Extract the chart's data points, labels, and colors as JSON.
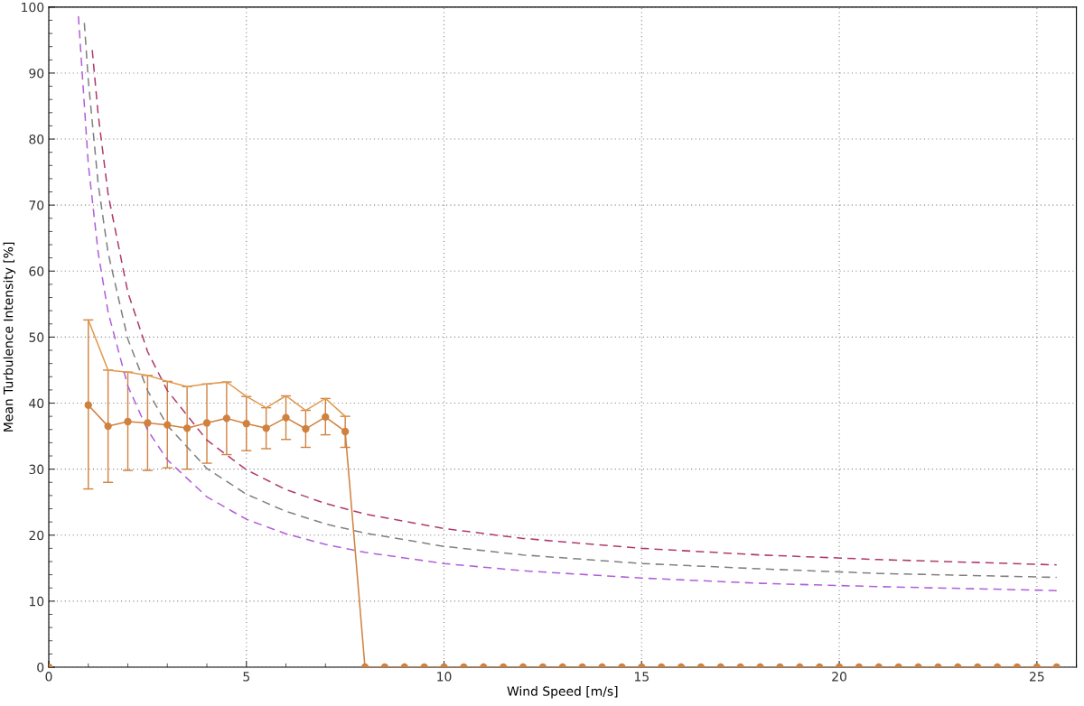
{
  "chart_data": {
    "type": "line",
    "xlabel": "Wind Speed [m/s]",
    "ylabel": "Mean Turbulence Intensity [%]",
    "xlim": [
      0,
      26
    ],
    "ylim": [
      0,
      100
    ],
    "xticks": [
      0,
      5,
      10,
      15,
      20,
      25
    ],
    "yticks": [
      0,
      10,
      20,
      30,
      40,
      50,
      60,
      70,
      80,
      90,
      100
    ],
    "grid": true,
    "legend": false,
    "series": [
      {
        "color": "#b03a6e",
        "line_style": "dashed",
        "marker": "none",
        "x": [
          1.1,
          1.25,
          1.5,
          2,
          2.5,
          3,
          4,
          5,
          6,
          7,
          8,
          10,
          12,
          15,
          18,
          21,
          25.5
        ],
        "values": [
          93.5,
          83.7,
          71.7,
          56.8,
          47.8,
          41.9,
          34.4,
          29.9,
          26.9,
          24.8,
          23.2,
          21.0,
          19.5,
          18.0,
          17.0,
          16.3,
          15.5
        ]
      },
      {
        "color": "#808080",
        "line_style": "dashed",
        "marker": "none",
        "x": [
          0.9,
          1.0,
          1.25,
          1.5,
          2,
          2.5,
          3,
          4,
          5,
          6,
          7,
          8,
          10,
          12,
          15,
          18,
          21,
          25.5
        ],
        "values": [
          97.6,
          88.9,
          73.2,
          62.8,
          49.7,
          41.9,
          36.6,
          30.1,
          26.2,
          23.6,
          21.7,
          20.3,
          18.3,
          17.0,
          15.7,
          14.9,
          14.2,
          13.6
        ]
      },
      {
        "color": "#b060d8",
        "line_style": "dashed",
        "marker": "none",
        "x": [
          0.75,
          1.0,
          1.25,
          1.5,
          2,
          2.5,
          3,
          4,
          5,
          6,
          7,
          8,
          10,
          12,
          15,
          18,
          21,
          25.5
        ],
        "values": [
          98.6,
          76.2,
          62.8,
          53.8,
          42.6,
          35.9,
          31.4,
          25.8,
          22.4,
          20.2,
          18.6,
          17.4,
          15.7,
          14.6,
          13.5,
          12.7,
          12.2,
          11.6
        ]
      },
      {
        "color": "#e09a50",
        "line_style": "solid",
        "marker": "none",
        "x": [
          1,
          1.5,
          2,
          2.5,
          3,
          3.5,
          4,
          4.5,
          5,
          5.5,
          6,
          6.5,
          7,
          7.5
        ],
        "values": [
          52.6,
          45.0,
          44.7,
          44.2,
          43.3,
          42.5,
          42.9,
          43.2,
          41.0,
          39.3,
          41.1,
          38.9,
          40.7,
          38.0
        ]
      },
      {
        "color": "#d0813e",
        "line_style": "solid",
        "marker": "circle",
        "x": [
          0,
          0.5,
          1,
          1.5,
          2,
          2.5,
          3,
          3.5,
          4,
          4.5,
          5,
          5.5,
          6,
          6.5,
          7,
          7.5,
          8,
          8.5,
          9,
          9.5,
          10,
          10.5,
          11,
          11.5,
          12,
          12.5,
          13,
          13.5,
          14,
          14.5,
          15,
          15.5,
          16,
          16.5,
          17,
          17.5,
          18,
          18.5,
          19,
          19.5,
          20,
          20.5,
          21,
          21.5,
          22,
          22.5,
          23,
          23.5,
          24,
          24.5,
          25,
          25.5
        ],
        "values": [
          0,
          null,
          39.7,
          36.5,
          37.2,
          37.0,
          36.7,
          36.2,
          37.0,
          37.7,
          36.9,
          36.2,
          37.8,
          36.1,
          37.9,
          35.7,
          0,
          0,
          0,
          0,
          0,
          0,
          0,
          0,
          0,
          0,
          0,
          0,
          0,
          0,
          0,
          0,
          0,
          0,
          0,
          0,
          0,
          0,
          0,
          0,
          0,
          0,
          0,
          0,
          0,
          0,
          0,
          0,
          0,
          0,
          0,
          0
        ],
        "errors": [
          null,
          null,
          [
            27.0,
            52.6
          ],
          [
            28.0,
            45.0
          ],
          [
            29.8,
            44.7
          ],
          [
            29.8,
            44.2
          ],
          [
            30.2,
            43.3
          ],
          [
            30.0,
            42.5
          ],
          [
            30.9,
            42.9
          ],
          [
            32.2,
            43.2
          ],
          [
            32.8,
            41.0
          ],
          [
            33.1,
            39.3
          ],
          [
            34.5,
            41.1
          ],
          [
            33.3,
            38.9
          ],
          [
            35.2,
            40.7
          ],
          [
            33.3,
            38.0
          ],
          null,
          null,
          null,
          null,
          null,
          null,
          null,
          null,
          null,
          null,
          null,
          null,
          null,
          null,
          null,
          null,
          null,
          null,
          null,
          null,
          null,
          null,
          null,
          null,
          null,
          null,
          null,
          null,
          null,
          null,
          null,
          null,
          null,
          null,
          null,
          null
        ]
      }
    ]
  }
}
